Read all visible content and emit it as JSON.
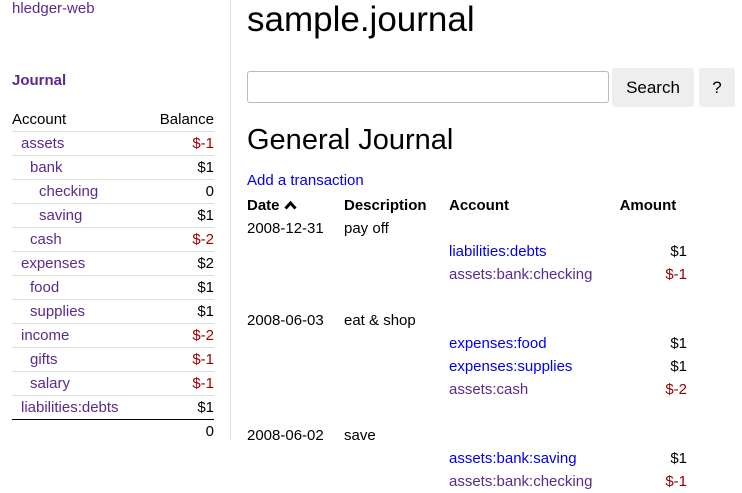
{
  "sidebar": {
    "brand": "hledger-web",
    "journal_link": "Journal",
    "headers": {
      "account": "Account",
      "balance": "Balance"
    },
    "accounts": [
      {
        "name": "assets",
        "balance": "$-1",
        "indent": 0,
        "negative": true
      },
      {
        "name": "bank",
        "balance": "$1",
        "indent": 1,
        "negative": false
      },
      {
        "name": "checking",
        "balance": "0",
        "indent": 2,
        "negative": false
      },
      {
        "name": "saving",
        "balance": "$1",
        "indent": 2,
        "negative": false
      },
      {
        "name": "cash",
        "balance": "$-2",
        "indent": 1,
        "negative": true
      },
      {
        "name": "expenses",
        "balance": "$2",
        "indent": 0,
        "negative": false
      },
      {
        "name": "food",
        "balance": "$1",
        "indent": 1,
        "negative": false
      },
      {
        "name": "supplies",
        "balance": "$1",
        "indent": 1,
        "negative": false
      },
      {
        "name": "income",
        "balance": "$-2",
        "indent": 0,
        "negative": true
      },
      {
        "name": "gifts",
        "balance": "$-1",
        "indent": 1,
        "negative": true
      },
      {
        "name": "salary",
        "balance": "$-1",
        "indent": 1,
        "negative": true
      },
      {
        "name": "liabilities:debts",
        "balance": "$1",
        "indent": 0,
        "negative": false
      }
    ],
    "total": "0"
  },
  "main": {
    "title": "sample.journal",
    "search": {
      "value": "",
      "placeholder": ""
    },
    "search_label": "Search",
    "help_label": "?",
    "heading": "General Journal",
    "add_link": "Add a transaction",
    "columns": {
      "date": "Date",
      "sort_icon": "chevron-up-icon",
      "description": "Description",
      "account": "Account",
      "amount": "Amount"
    },
    "transactions": [
      {
        "date": "2008-12-31",
        "description": "pay off",
        "postings": [
          {
            "account": "liabilities:debts",
            "amount": "$1",
            "visited": false,
            "negative": false
          },
          {
            "account": "assets:bank:checking",
            "amount": "$-1",
            "visited": true,
            "negative": true
          }
        ]
      },
      {
        "date": "2008-06-03",
        "description": "eat & shop",
        "postings": [
          {
            "account": "expenses:food",
            "amount": "$1",
            "visited": false,
            "negative": false
          },
          {
            "account": "expenses:supplies",
            "amount": "$1",
            "visited": false,
            "negative": false
          },
          {
            "account": "assets:cash",
            "amount": "$-2",
            "visited": true,
            "negative": true
          }
        ]
      },
      {
        "date": "2008-06-02",
        "description": "save",
        "postings": [
          {
            "account": "assets:bank:saving",
            "amount": "$1",
            "visited": false,
            "negative": false
          },
          {
            "account": "assets:bank:checking",
            "amount": "$-1",
            "visited": true,
            "negative": true
          }
        ]
      }
    ]
  },
  "colors": {
    "visited_link": "#5b2a8c",
    "link": "#0000ee",
    "negative": "#990000"
  }
}
